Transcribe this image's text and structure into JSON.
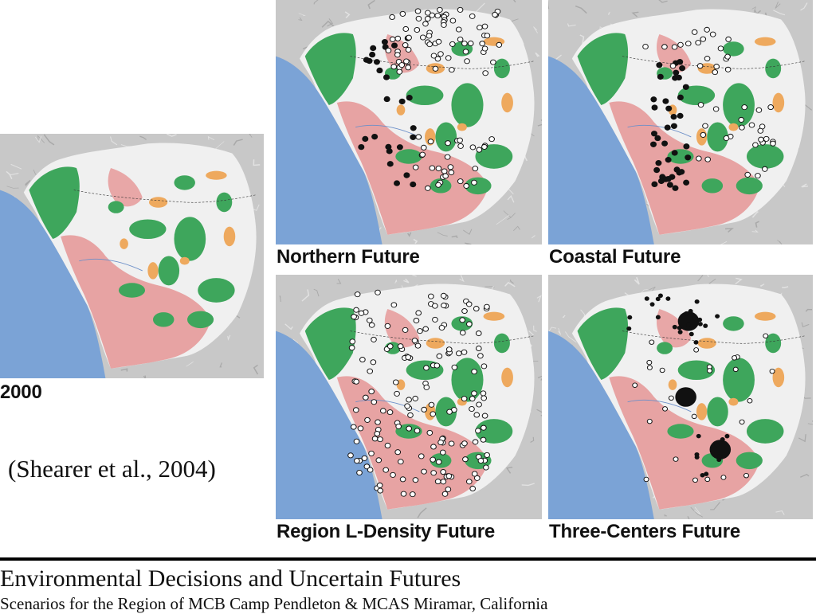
{
  "maps": [
    {
      "id": "map-2000",
      "label": "2000",
      "marker_style": "none"
    },
    {
      "id": "map-northern",
      "label": "Northern Future",
      "marker_style": "mixed-north"
    },
    {
      "id": "map-coastal",
      "label": "Coastal Future",
      "marker_style": "mixed-coastal"
    },
    {
      "id": "map-region",
      "label": "Region L-Density Future",
      "marker_style": "open-dispersed"
    },
    {
      "id": "map-three",
      "label": "Three-Centers Future",
      "marker_style": "three-centers"
    }
  ],
  "citation": "(Shearer et al., 2004)",
  "footer": {
    "title": "Environmental Decisions and Uncertain Futures",
    "subtitle": "Scenarios for the Region of MCB Camp Pendleton & MCAS Miramar, California"
  },
  "colors": {
    "ocean": "#7ba3d6",
    "terrain": "#c8c8c8",
    "developed": "#e69a9a",
    "conserved": "#3ea65c",
    "planned": "#eea95e",
    "undeveloped": "#f0f0f0"
  }
}
